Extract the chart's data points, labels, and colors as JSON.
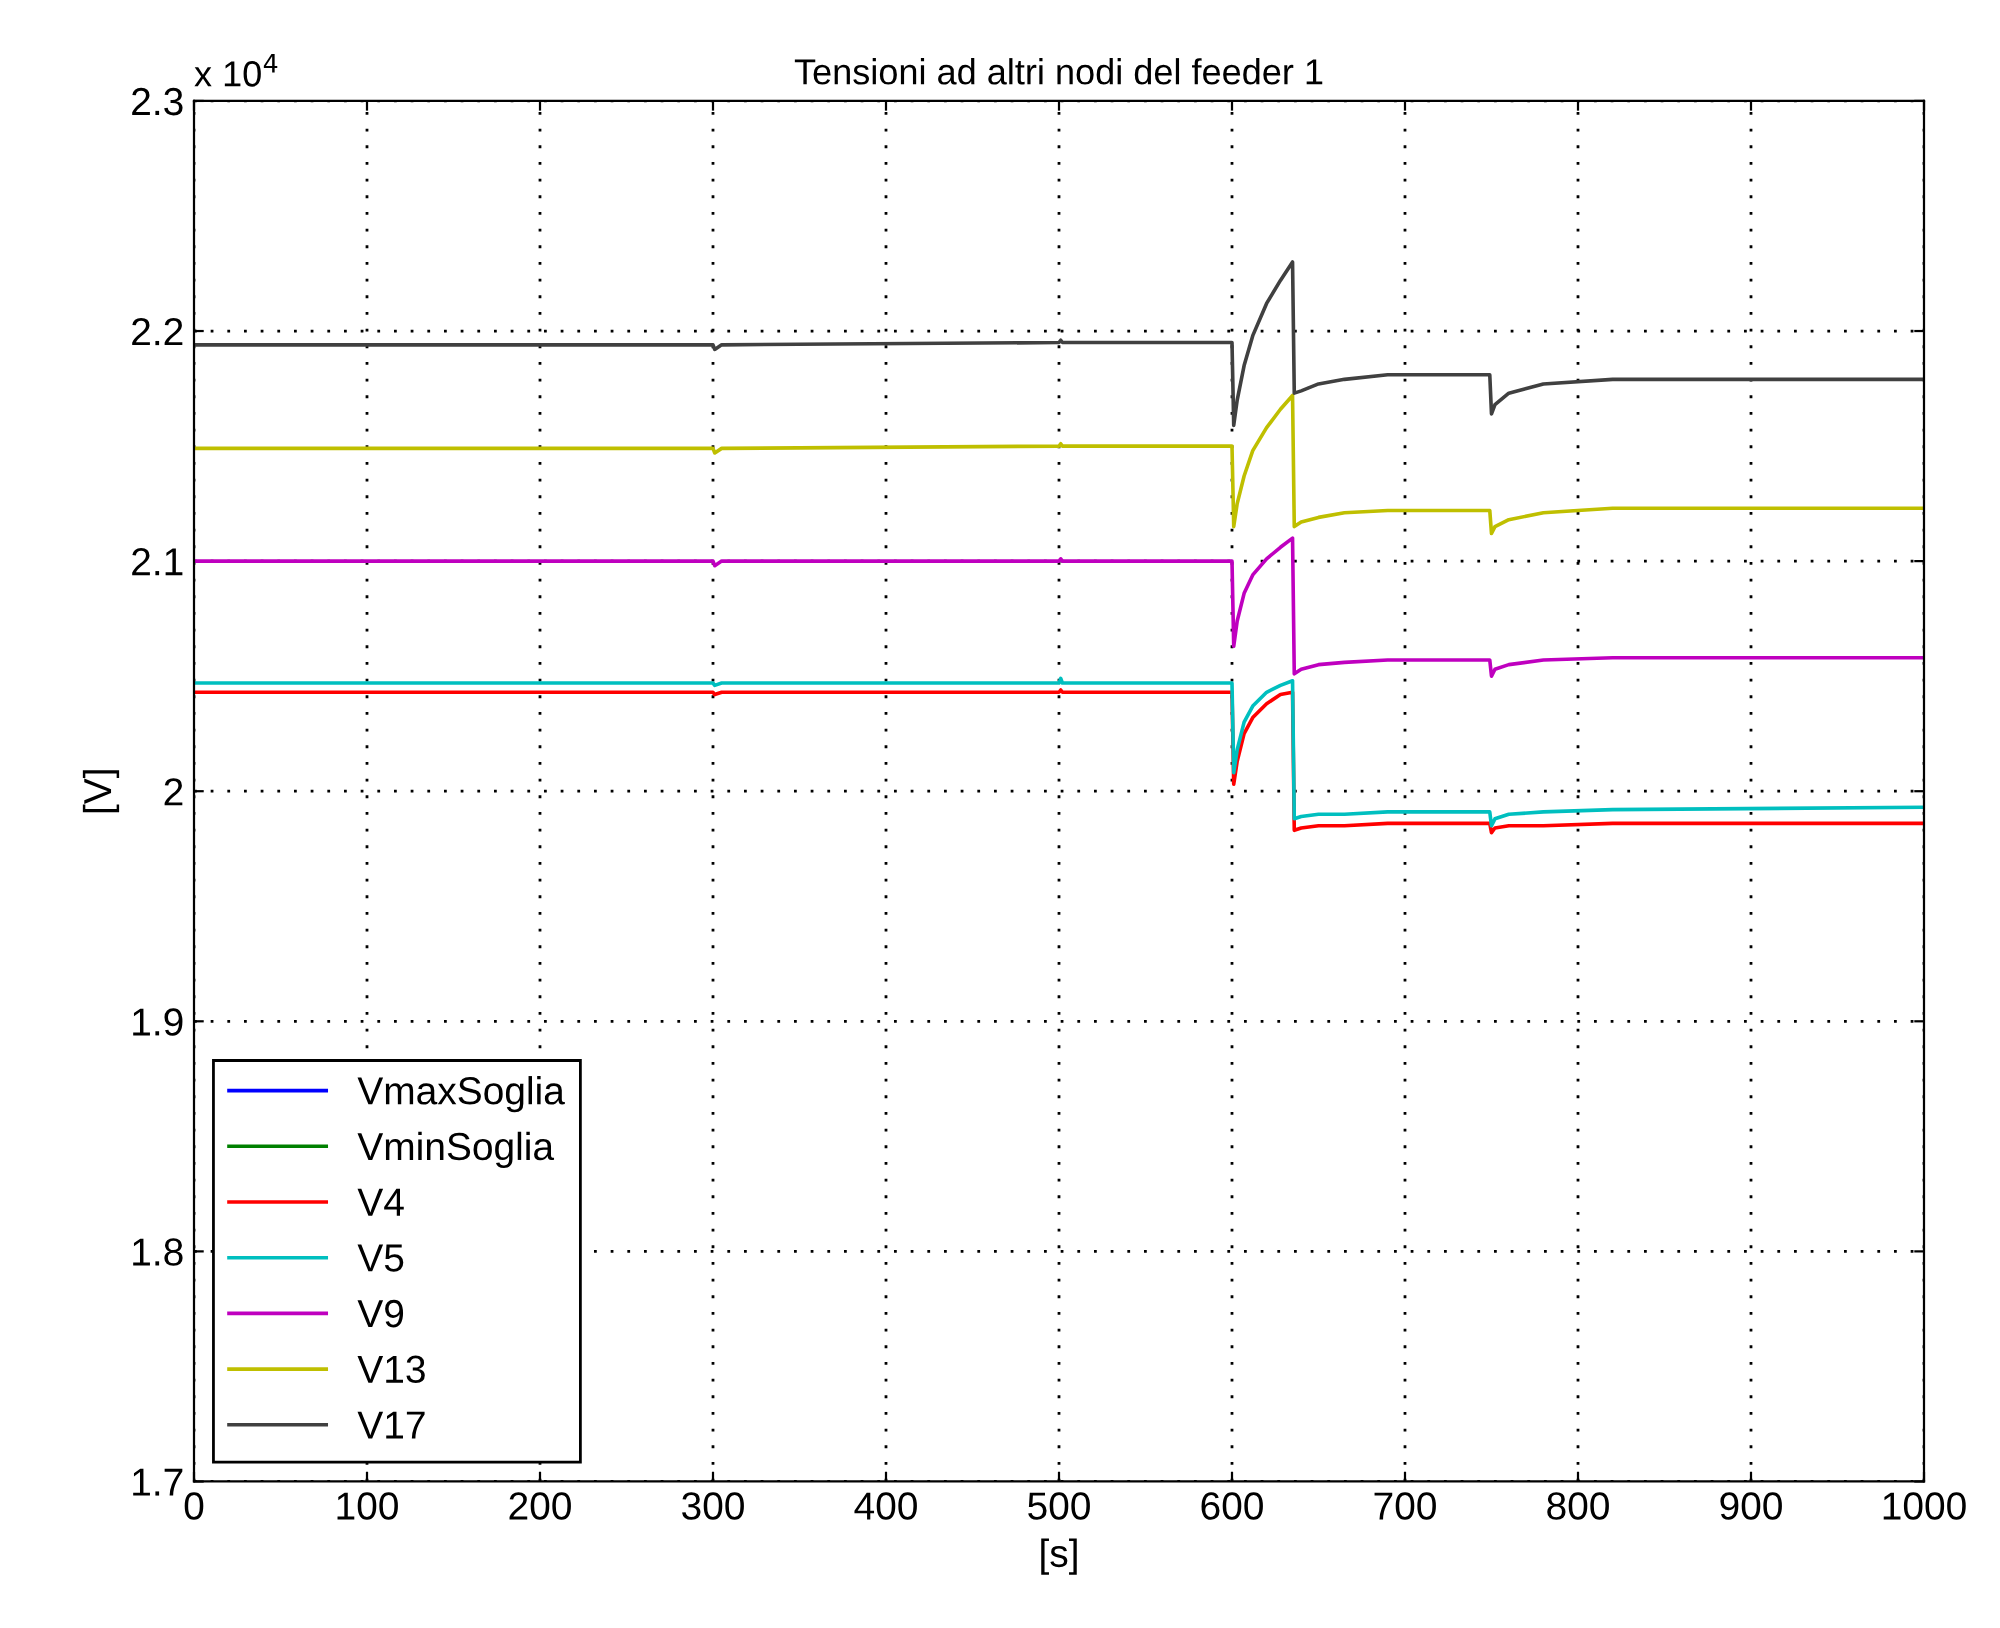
{
  "chart_data": {
    "type": "line",
    "title": "Tensioni ad altri nodi del feeder 1",
    "xlabel": "[s]",
    "ylabel": "[V]",
    "annotations": [
      "x 10$^{4}$"
    ],
    "x": [
      0,
      300,
      301,
      305,
      500,
      501,
      502,
      505,
      600,
      601,
      603,
      607,
      612,
      620,
      628,
      635,
      636,
      640,
      650,
      665,
      690,
      749,
      750,
      752,
      760,
      780,
      820,
      1000
    ],
    "series": [
      {
        "name": "VmaxSoglia",
        "color": "#0000ff",
        "values": [
          null,
          null,
          null,
          null,
          null,
          null,
          null,
          null,
          null,
          null,
          null,
          null,
          null,
          null,
          null,
          null,
          null,
          null,
          null,
          null,
          null,
          null,
          null,
          null,
          null,
          null,
          null,
          null
        ]
      },
      {
        "name": "VminSoglia",
        "color": "#008000",
        "values": [
          null,
          null,
          null,
          null,
          null,
          null,
          null,
          null,
          null,
          null,
          null,
          null,
          null,
          null,
          null,
          null,
          null,
          null,
          null,
          null,
          null,
          null,
          null,
          null,
          null,
          null,
          null,
          null
        ]
      },
      {
        "name": "V4",
        "color": "#ff0000",
        "values": [
          2.043,
          2.043,
          2.042,
          2.043,
          2.043,
          2.044,
          2.043,
          2.043,
          2.043,
          2.003,
          2.013,
          2.025,
          2.032,
          2.038,
          2.042,
          2.043,
          1.983,
          1.984,
          1.985,
          1.985,
          1.986,
          1.986,
          1.982,
          1.984,
          1.985,
          1.985,
          1.986,
          1.986
        ]
      },
      {
        "name": "V5",
        "color": "#00bfbf",
        "values": [
          2.047,
          2.047,
          2.046,
          2.047,
          2.047,
          2.049,
          2.047,
          2.047,
          2.047,
          2.008,
          2.018,
          2.03,
          2.037,
          2.043,
          2.046,
          2.048,
          1.988,
          1.989,
          1.99,
          1.99,
          1.991,
          1.991,
          1.985,
          1.988,
          1.99,
          1.991,
          1.992,
          1.993
        ]
      },
      {
        "name": "V9",
        "color": "#bf00bf",
        "values": [
          2.1,
          2.1,
          2.098,
          2.1,
          2.1,
          2.101,
          2.1,
          2.1,
          2.1,
          2.063,
          2.074,
          2.086,
          2.094,
          2.101,
          2.106,
          2.11,
          2.051,
          2.053,
          2.055,
          2.056,
          2.057,
          2.057,
          2.05,
          2.053,
          2.055,
          2.057,
          2.058,
          2.058
        ]
      },
      {
        "name": "V13",
        "color": "#bfbf00",
        "values": [
          2.149,
          2.149,
          2.147,
          2.149,
          2.15,
          2.151,
          2.15,
          2.15,
          2.15,
          2.115,
          2.125,
          2.137,
          2.148,
          2.158,
          2.166,
          2.172,
          2.115,
          2.117,
          2.119,
          2.121,
          2.122,
          2.122,
          2.112,
          2.115,
          2.118,
          2.121,
          2.123,
          2.123
        ]
      },
      {
        "name": "V17",
        "color": "#404040",
        "values": [
          2.194,
          2.194,
          2.192,
          2.194,
          2.195,
          2.196,
          2.195,
          2.195,
          2.195,
          2.159,
          2.17,
          2.185,
          2.198,
          2.212,
          2.222,
          2.23,
          2.173,
          2.174,
          2.177,
          2.179,
          2.181,
          2.181,
          2.164,
          2.168,
          2.173,
          2.177,
          2.179,
          2.179
        ]
      }
    ],
    "xlim": [
      0,
      1000
    ],
    "xticks": [
      0,
      100,
      200,
      300,
      400,
      500,
      600,
      700,
      800,
      900,
      1000
    ],
    "ylim": [
      1.7,
      2.3
    ],
    "yticks": [
      1.7,
      1.8,
      1.9,
      2,
      2.1,
      2.2,
      2.3
    ],
    "grid": true,
    "legend": "bottom left",
    "line_style": "solid",
    "marker": "none"
  }
}
